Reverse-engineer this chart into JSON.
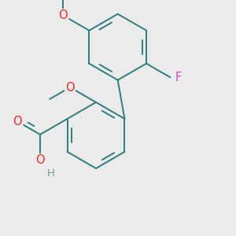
{
  "bg_color": "#ebebeb",
  "bond_color": "#2d7d7d",
  "bond_width": 1.4,
  "O_color": "#ff2222",
  "F_color": "#cc44cc",
  "H_color": "#6d9a9a",
  "font_size_atom": 10.5,
  "figsize": [
    3.0,
    3.0
  ],
  "dpi": 100,
  "xlim": [
    0,
    3
  ],
  "ylim": [
    0,
    3
  ]
}
